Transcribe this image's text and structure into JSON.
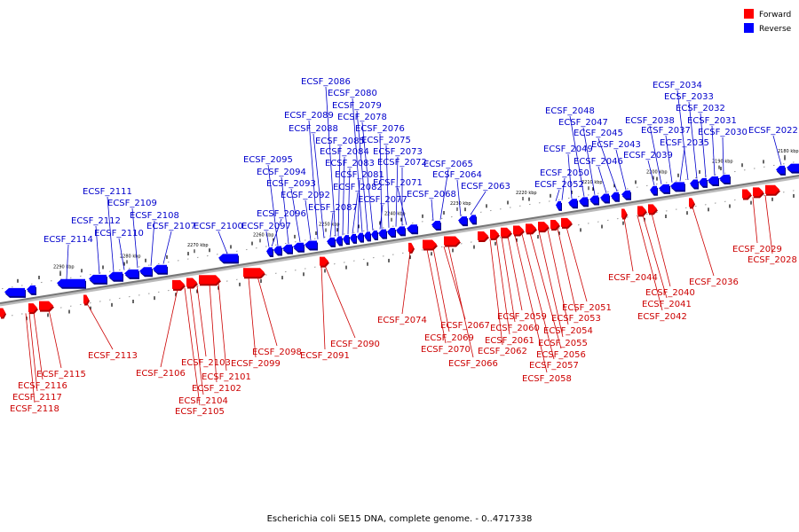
{
  "caption": "Escherichia coli SE15 DNA, complete genome. - 0..4717338",
  "legend": [
    {
      "label": "Forward",
      "color": "#ff0000"
    },
    {
      "label": "Reverse",
      "color": "#0000ff"
    }
  ],
  "colors": {
    "forward": "#ff0000",
    "reverse": "#0000ff",
    "forward_label": "#cc0000",
    "reverse_label": "#0000cc",
    "axis": "#888888"
  },
  "ticks": [
    "2180 kbp",
    "2190 kbp",
    "2200 kbp",
    "2210 kbp",
    "2220 kbp",
    "2230 kbp",
    "2240 kbp",
    "2250 kbp",
    "2260 kbp",
    "2270 kbp",
    "2280 kbp",
    "2290 kbp"
  ],
  "reverse_genes": [
    "ECSF_2022",
    "ECSF_2030",
    "ECSF_2031",
    "ECSF_2032",
    "ECSF_2033",
    "ECSF_2034",
    "ECSF_2035",
    "ECSF_2037",
    "ECSF_2038",
    "ECSF_2039",
    "ECSF_2043",
    "ECSF_2045",
    "ECSF_2046",
    "ECSF_2047",
    "ECSF_2048",
    "ECSF_2049",
    "ECSF_2050",
    "ECSF_2052",
    "ECSF_2063",
    "ECSF_2064",
    "ECSF_2065",
    "ECSF_2068",
    "ECSF_2071",
    "ECSF_2072",
    "ECSF_2073",
    "ECSF_2075",
    "ECSF_2076",
    "ECSF_2077",
    "ECSF_2078",
    "ECSF_2079",
    "ECSF_2080",
    "ECSF_2081",
    "ECSF_2082",
    "ECSF_2083",
    "ECSF_2084",
    "ECSF_2085",
    "ECSF_2086",
    "ECSF_2087",
    "ECSF_2088",
    "ECSF_2089",
    "ECSF_2092",
    "ECSF_2093",
    "ECSF_2094",
    "ECSF_2095",
    "ECSF_2096",
    "ECSF_2097",
    "ECSF_2100",
    "ECSF_2107",
    "ECSF_2108",
    "ECSF_2109",
    "ECSF_2110",
    "ECSF_2111",
    "ECSF_2112",
    "ECSF_2114"
  ],
  "forward_genes": [
    "ECSF_2028",
    "ECSF_2029",
    "ECSF_2036",
    "ECSF_2040",
    "ECSF_2041",
    "ECSF_2042",
    "ECSF_2044",
    "ECSF_2051",
    "ECSF_2053",
    "ECSF_2054",
    "ECSF_2055",
    "ECSF_2056",
    "ECSF_2057",
    "ECSF_2058",
    "ECSF_2059",
    "ECSF_2060",
    "ECSF_2061",
    "ECSF_2062",
    "ECSF_2066",
    "ECSF_2067",
    "ECSF_2069",
    "ECSF_2070",
    "ECSF_2074",
    "ECSF_2090",
    "ECSF_2091",
    "ECSF_2098",
    "ECSF_2099",
    "ECSF_2101",
    "ECSF_2102",
    "ECSF_2103",
    "ECSF_2104",
    "ECSF_2105",
    "ECSF_2106",
    "ECSF_2113",
    "ECSF_2115",
    "ECSF_2116",
    "ECSF_2117",
    "ECSF_2118"
  ]
}
